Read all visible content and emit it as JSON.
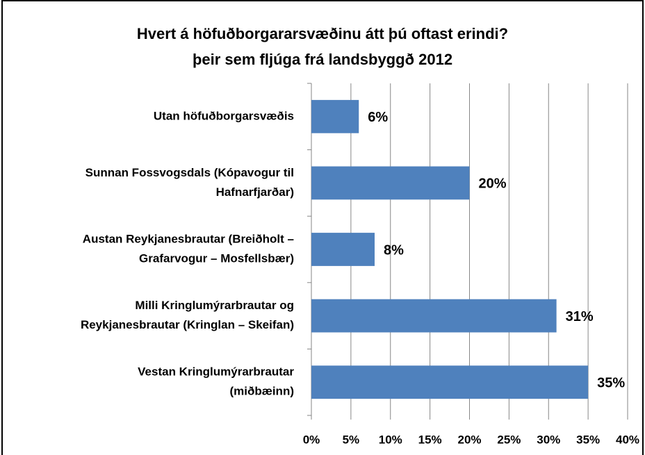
{
  "chart_data": {
    "type": "bar",
    "orientation": "horizontal",
    "title": "Hvert á höfuðborgararsvæðinu  átt þú oftast erindi?",
    "subtitle": "þeir sem fljúga frá landsbyggð 2012",
    "categories": [
      [
        "Utan höfuðborgarsvæðis"
      ],
      [
        "Sunnan Fossvogsdals (Kópavogur til",
        "Hafnarfjarðar)"
      ],
      [
        "Austan Reykjanesbrautar (Breiðholt –",
        "Grafarvogur – Mosfellsbær)"
      ],
      [
        "Milli Kringlumýrarbrautar og",
        "Reykjanesbrautar (Kringlan – Skeifan)"
      ],
      [
        "Vestan Kringlumýrarbrautar",
        "(miðbæinn)"
      ]
    ],
    "values": [
      6,
      20,
      8,
      31,
      35
    ],
    "value_labels": [
      "6%",
      "20%",
      "8%",
      "31%",
      "35%"
    ],
    "color": "#4f81bd",
    "xlim": [
      0,
      40
    ],
    "xticks": [
      {
        "value": 0,
        "label": "0%"
      },
      {
        "value": 5,
        "label": "5%"
      },
      {
        "value": 10,
        "label": "10%"
      },
      {
        "value": 15,
        "label": "15%"
      },
      {
        "value": 20,
        "label": "20%"
      },
      {
        "value": 25,
        "label": "25%"
      },
      {
        "value": 30,
        "label": "30%"
      },
      {
        "value": 35,
        "label": "35%"
      },
      {
        "value": 40,
        "label": "40%"
      }
    ],
    "grid": true
  }
}
